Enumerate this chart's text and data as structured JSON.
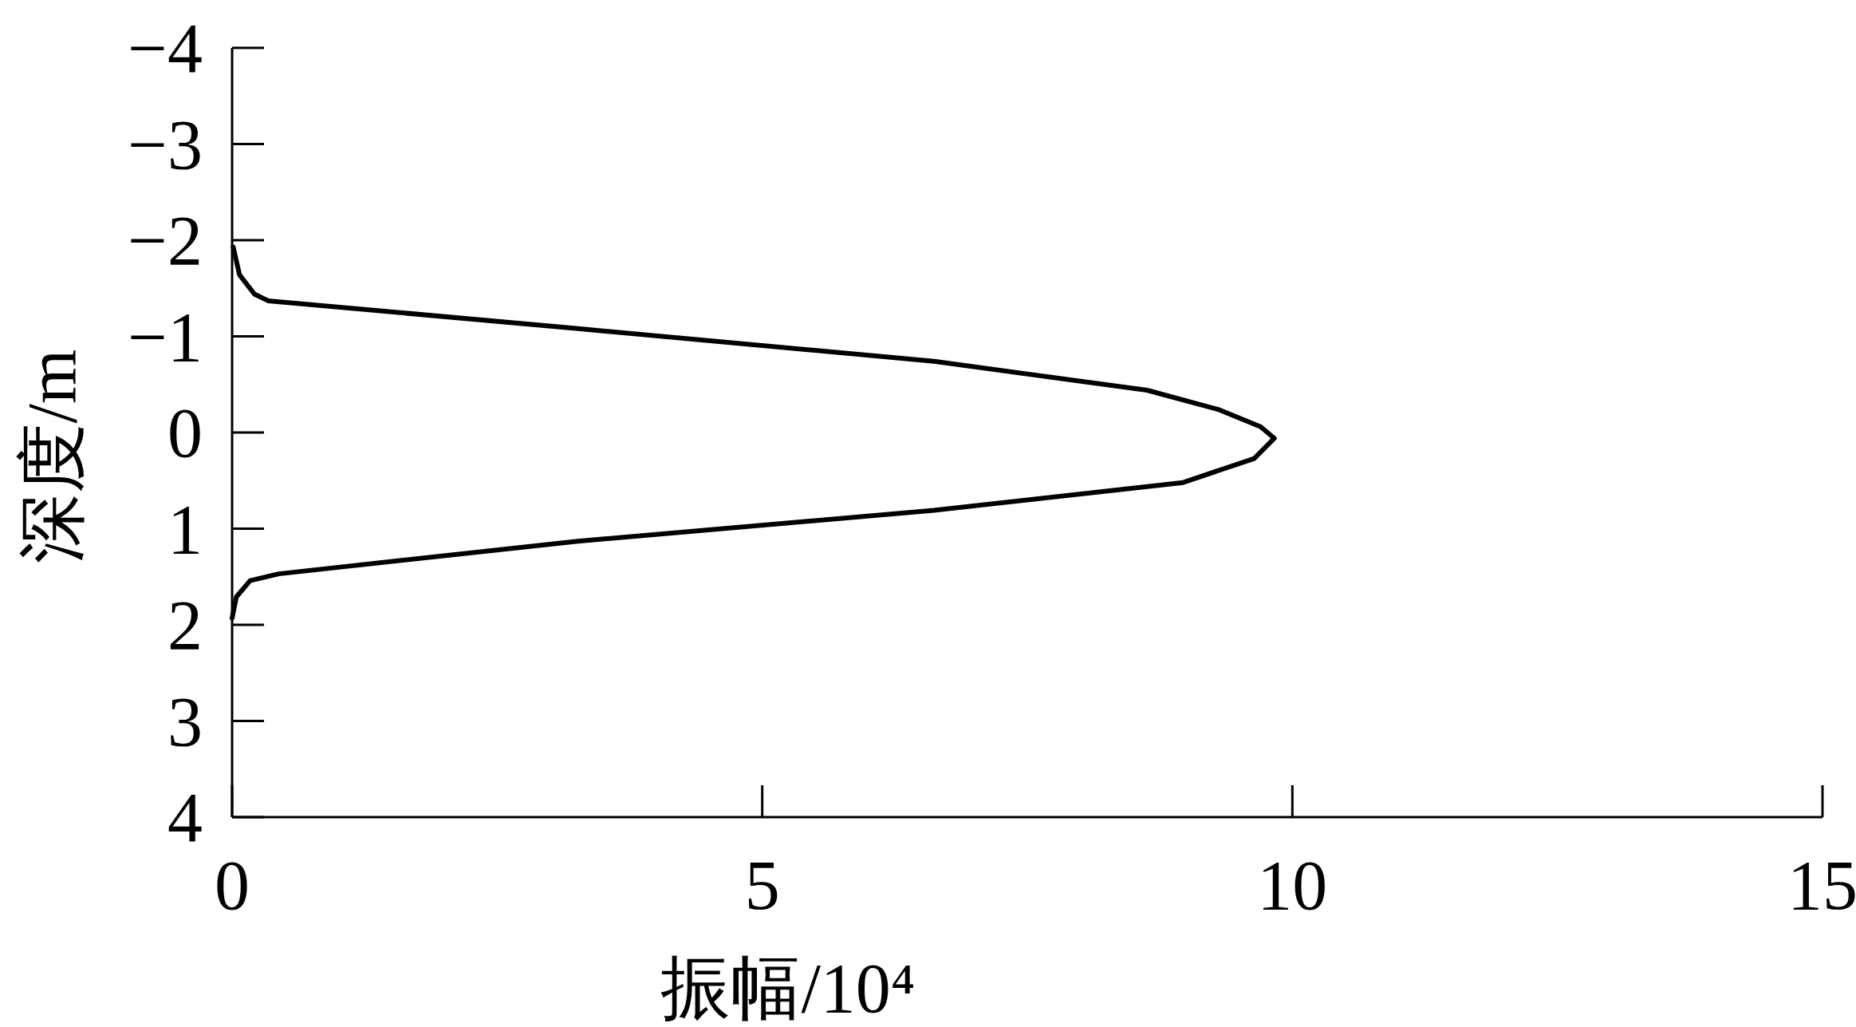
{
  "chart_data": {
    "type": "line",
    "xlabel": "振幅/10⁴",
    "ylabel": "深度/m",
    "xlim": [
      0,
      15
    ],
    "ylim": [
      4,
      -4
    ],
    "xticks": [
      0,
      5,
      10,
      15
    ],
    "yticks": [
      {
        "value": -4,
        "label": "−4"
      },
      {
        "value": -3,
        "label": "−3"
      },
      {
        "value": -2,
        "label": "−2"
      },
      {
        "value": -1,
        "label": "−1"
      },
      0,
      1,
      2,
      3,
      4
    ],
    "grid": false,
    "marker": "none",
    "line_style": "solid",
    "series": [
      {
        "color": "#000000",
        "x": [
          0.01,
          0.07,
          0.21,
          0.34,
          3.26,
          6.62,
          8.63,
          9.3,
          9.7,
          9.83,
          9.64,
          8.97,
          6.62,
          3.26,
          0.44,
          0.17,
          0.04,
          0
        ],
        "values": [
          -1.93,
          -1.64,
          -1.44,
          -1.37,
          -1.08,
          -0.74,
          -0.44,
          -0.24,
          -0.06,
          0.06,
          0.27,
          0.52,
          0.81,
          1.13,
          1.47,
          1.54,
          1.71,
          1.93
        ]
      }
    ]
  }
}
